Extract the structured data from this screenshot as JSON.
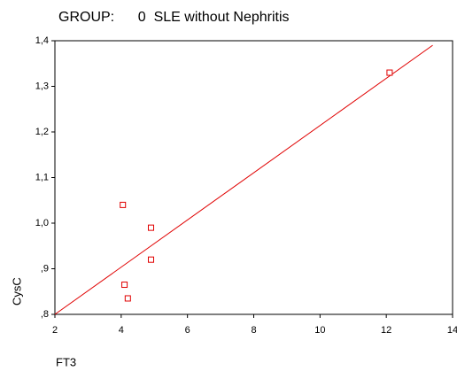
{
  "chart_data": {
    "type": "scatter",
    "title": "GROUP:      0  SLE without Nephritis",
    "x_label": "FT3",
    "y_label": "CysC",
    "series": [
      {
        "color": "#e00000",
        "x": [
          4.05,
          4.9,
          4.9,
          4.1,
          4.2,
          12.1
        ],
        "values": [
          1.04,
          0.99,
          0.92,
          0.865,
          0.835,
          1.33
        ]
      }
    ],
    "fit_line": {
      "color": "#e00000",
      "x": [
        2,
        13.4
      ],
      "values": [
        0.8,
        1.39
      ]
    },
    "xlim": [
      2,
      14
    ],
    "xticks": [
      2,
      4,
      6,
      8,
      10,
      12,
      14
    ],
    "ylim": [
      0.8,
      1.4
    ],
    "yticks": [
      {
        "value": 0.8,
        "label": ",8"
      },
      {
        "value": 0.9,
        "label": ",9"
      },
      {
        "value": 1.0,
        "label": "1,0"
      },
      {
        "value": 1.1,
        "label": "1,1"
      },
      {
        "value": 1.2,
        "label": "1,2"
      },
      {
        "value": 1.3,
        "label": "1,3"
      },
      {
        "value": 1.4,
        "label": "1,4"
      }
    ]
  }
}
